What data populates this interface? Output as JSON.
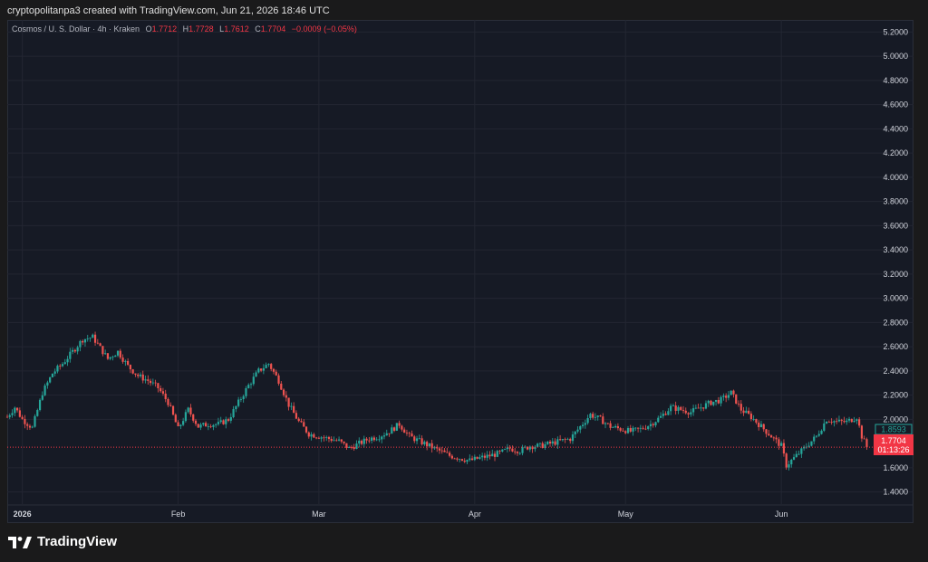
{
  "header": {
    "text": "cryptopolitanpa3 created with TradingView.com, Jun 21, 2026 18:46 UTC"
  },
  "legend": {
    "symbol": "Cosmos / U. S. Dollar · 4h · Kraken",
    "open_label": "O",
    "open": "1.7712",
    "high_label": "H",
    "high": "1.7728",
    "low_label": "L",
    "low": "1.7612",
    "close_label": "C",
    "close": "1.7704",
    "change": "−0.0009 (−0.05%)"
  },
  "badges": {
    "marker_value": "1.8593",
    "last_price": "1.7704",
    "countdown": "01:13:26"
  },
  "footer": {
    "brand": "TradingView"
  },
  "colors": {
    "up": "#26a69a",
    "down": "#ef5350",
    "background": "#161a25",
    "grid": "#232632",
    "last_price": "#f23645"
  },
  "chart_data": {
    "type": "candlestick",
    "title": "Cosmos / U. S. Dollar · 4h · Kraken",
    "ylim": [
      1.3,
      5.3
    ],
    "y_ticks": [
      "5.2000",
      "5.0000",
      "4.8000",
      "4.6000",
      "4.4000",
      "4.2000",
      "4.0000",
      "3.8000",
      "3.6000",
      "3.4000",
      "3.2000",
      "3.0000",
      "2.8000",
      "2.6000",
      "2.4000",
      "2.2000",
      "2.0000",
      "1.6000",
      "1.4000"
    ],
    "x_ticks": [
      "2026",
      "Feb",
      "Mar",
      "Apr",
      "May",
      "Jun"
    ],
    "x_tick_days": [
      3,
      34,
      62,
      93,
      123,
      154
    ],
    "x_range_days": [
      0,
      172
    ],
    "grid": true,
    "series": [
      {
        "keypoints_day_price": [
          [
            0,
            2.02
          ],
          [
            1.5,
            2.1
          ],
          [
            3,
            2.0
          ],
          [
            5,
            1.93
          ],
          [
            7,
            2.22
          ],
          [
            9,
            2.38
          ],
          [
            11,
            2.46
          ],
          [
            13,
            2.56
          ],
          [
            15,
            2.66
          ],
          [
            17,
            2.68
          ],
          [
            18,
            2.62
          ],
          [
            20,
            2.5
          ],
          [
            22,
            2.56
          ],
          [
            24,
            2.44
          ],
          [
            26,
            2.36
          ],
          [
            28,
            2.32
          ],
          [
            30,
            2.26
          ],
          [
            32,
            2.14
          ],
          [
            34,
            1.92
          ],
          [
            36,
            2.08
          ],
          [
            38,
            1.94
          ],
          [
            40,
            1.96
          ],
          [
            42,
            1.96
          ],
          [
            44,
            2.0
          ],
          [
            46,
            2.14
          ],
          [
            48,
            2.28
          ],
          [
            50,
            2.4
          ],
          [
            52,
            2.46
          ],
          [
            54,
            2.32
          ],
          [
            56,
            2.12
          ],
          [
            58,
            1.98
          ],
          [
            60,
            1.88
          ],
          [
            62,
            1.86
          ],
          [
            64,
            1.84
          ],
          [
            66,
            1.82
          ],
          [
            68,
            1.76
          ],
          [
            70,
            1.8
          ],
          [
            72,
            1.84
          ],
          [
            74,
            1.86
          ],
          [
            76,
            1.9
          ],
          [
            78,
            1.96
          ],
          [
            80,
            1.86
          ],
          [
            82,
            1.82
          ],
          [
            84,
            1.78
          ],
          [
            86,
            1.74
          ],
          [
            88,
            1.7
          ],
          [
            90,
            1.68
          ],
          [
            92,
            1.66
          ],
          [
            94,
            1.68
          ],
          [
            96,
            1.7
          ],
          [
            98,
            1.72
          ],
          [
            100,
            1.76
          ],
          [
            102,
            1.74
          ],
          [
            104,
            1.78
          ],
          [
            106,
            1.78
          ],
          [
            108,
            1.8
          ],
          [
            110,
            1.82
          ],
          [
            112,
            1.84
          ],
          [
            114,
            1.94
          ],
          [
            116,
            2.04
          ],
          [
            118,
            2.0
          ],
          [
            120,
            1.94
          ],
          [
            122,
            1.92
          ],
          [
            124,
            1.9
          ],
          [
            126,
            1.92
          ],
          [
            128,
            1.96
          ],
          [
            130,
            2.02
          ],
          [
            132,
            2.1
          ],
          [
            134,
            2.08
          ],
          [
            136,
            2.06
          ],
          [
            138,
            2.1
          ],
          [
            140,
            2.14
          ],
          [
            142,
            2.16
          ],
          [
            144,
            2.22
          ],
          [
            146,
            2.08
          ],
          [
            148,
            2.02
          ],
          [
            150,
            1.94
          ],
          [
            152,
            1.86
          ],
          [
            154,
            1.78
          ],
          [
            155,
            1.62
          ],
          [
            157,
            1.7
          ],
          [
            159,
            1.78
          ],
          [
            161,
            1.86
          ],
          [
            163,
            2.0
          ],
          [
            165,
            1.98
          ],
          [
            167,
            1.98
          ],
          [
            169,
            2.02
          ],
          [
            170,
            1.86
          ],
          [
            171,
            1.77
          ]
        ],
        "last": 1.7704,
        "marker": 1.8593
      }
    ]
  }
}
